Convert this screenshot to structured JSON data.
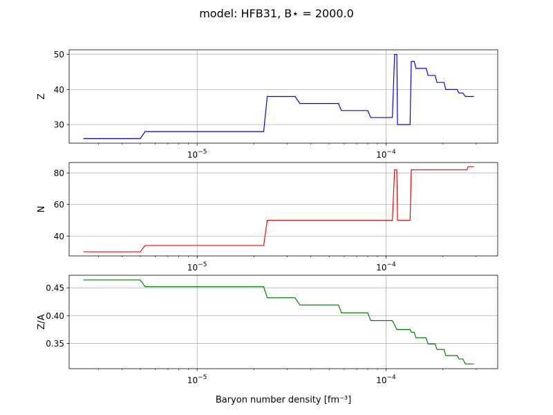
{
  "chart_data": {
    "type": "line",
    "title": "model: HFB31, B⋆ = 2000.0",
    "xlabel": "Baryon number density [fm⁻³]",
    "x_scale": "log",
    "xlim": [
      2.1e-06,
      0.00039
    ],
    "x_ticks": [
      {
        "value": 1e-05,
        "label": "10⁻⁵"
      },
      {
        "value": 0.0001,
        "label": "10⁻⁴"
      }
    ],
    "grid": true,
    "panels": [
      {
        "name": "Z",
        "ylabel": "Z",
        "color": "#0000ff",
        "ylim": [
          24.7,
          51.3
        ],
        "yticks": [
          30,
          40,
          50
        ],
        "tick_labels": [
          "30",
          "40",
          "50"
        ],
        "series": {
          "x": [
            2.5e-06,
            5e-06,
            5.3e-06,
            2.25e-05,
            2.35e-05,
            3.3e-05,
            3.5e-05,
            5.6e-05,
            5.8e-05,
            8e-05,
            8.3e-05,
            0.000108,
            0.000111,
            0.000114,
            0.000115,
            0.000134,
            0.000136,
            0.000141,
            0.000144,
            0.000163,
            0.000167,
            0.000182,
            0.000186,
            0.000203,
            0.000207,
            0.000238,
            0.000243,
            0.000255,
            0.000263,
            0.000292
          ],
          "y": [
            26,
            26,
            28,
            28,
            38,
            38,
            36,
            36,
            34,
            34,
            32,
            32,
            50,
            50,
            30,
            30,
            48,
            48,
            46,
            46,
            44,
            44,
            42,
            42,
            40,
            40,
            39,
            39,
            38,
            38
          ]
        }
      },
      {
        "name": "N",
        "ylabel": "N",
        "color": "#ff0000",
        "ylim": [
          27.4,
          86.6
        ],
        "yticks": [
          40,
          60,
          80
        ],
        "tick_labels": [
          "40",
          "60",
          "80"
        ],
        "series": {
          "x": [
            2.5e-06,
            5e-06,
            5.3e-06,
            2.25e-05,
            2.35e-05,
            0.000108,
            0.000111,
            0.000114,
            0.000115,
            0.000134,
            0.000136,
            0.000268,
            0.000272,
            0.000292
          ],
          "y": [
            30,
            30,
            34,
            34,
            50,
            50,
            82,
            82,
            50,
            50,
            82,
            82,
            84,
            84
          ]
        }
      },
      {
        "name": "Z/A",
        "ylabel": "Z/A",
        "color": "#008000",
        "ylim": [
          0.3045,
          0.4725
        ],
        "yticks": [
          0.35,
          0.4,
          0.45
        ],
        "tick_labels": [
          "0.35",
          "0.40",
          "0.45"
        ],
        "series": {
          "x": [
            2.5e-06,
            5e-06,
            5.3e-06,
            2.25e-05,
            2.35e-05,
            3.3e-05,
            3.5e-05,
            5.6e-05,
            5.8e-05,
            8e-05,
            8.3e-05,
            0.000108,
            0.000114,
            0.000134,
            0.000136,
            0.000141,
            0.000144,
            0.000163,
            0.000167,
            0.000182,
            0.000186,
            0.000203,
            0.000207,
            0.000238,
            0.000243,
            0.000255,
            0.000263,
            0.000292
          ],
          "y": [
            0.464,
            0.464,
            0.452,
            0.452,
            0.432,
            0.432,
            0.419,
            0.419,
            0.405,
            0.405,
            0.391,
            0.391,
            0.375,
            0.375,
            0.37,
            0.37,
            0.36,
            0.36,
            0.349,
            0.349,
            0.339,
            0.339,
            0.328,
            0.328,
            0.322,
            0.322,
            0.313,
            0.313
          ]
        }
      }
    ]
  }
}
